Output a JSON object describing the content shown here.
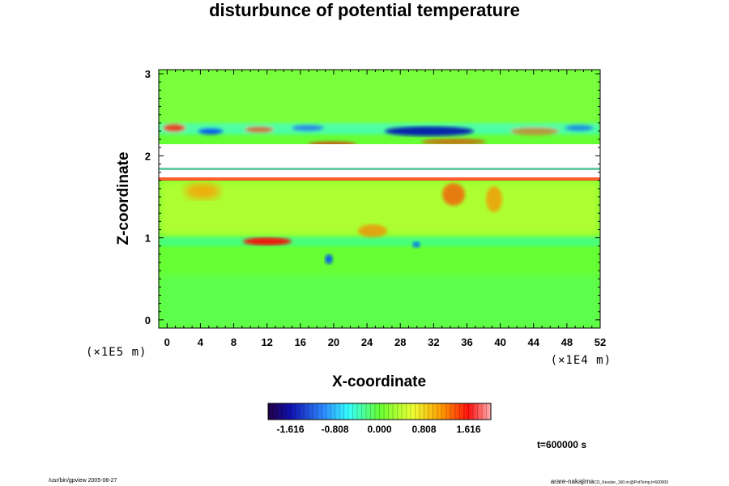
{
  "chart_data": {
    "type": "heatmap",
    "title": "disturbunce of potential temperature",
    "xlabel": "X-coordinate",
    "ylabel": "Z-coordinate",
    "x_unit": "(×1E4 m)",
    "y_unit": "(×1E5 m)",
    "x_ticks": [
      "0",
      "4",
      "8",
      "12",
      "16",
      "20",
      "24",
      "28",
      "32",
      "36",
      "40",
      "44",
      "48",
      "52"
    ],
    "y_ticks": [
      "0",
      "1",
      "2",
      "3"
    ],
    "xlim": [
      -1,
      52
    ],
    "ylim": [
      -0.1,
      3.05
    ],
    "colorbar": {
      "ticks": [
        "-1.616",
        "-0.808",
        "0.000",
        "0.808",
        "1.616"
      ],
      "range": [
        -2.02,
        2.02
      ]
    },
    "background_value": 0.45,
    "features": [
      {
        "kind": "band",
        "z_from": 1.68,
        "z_to": 2.22,
        "value": "undefined"
      },
      {
        "kind": "band",
        "z_from": 0.88,
        "z_to": 1.7,
        "value": 0.6
      },
      {
        "kind": "band",
        "z_from": -0.1,
        "z_to": 0.4,
        "value": 0.2
      },
      {
        "kind": "band",
        "z_from": 2.22,
        "z_to": 2.4,
        "value": "oscillating"
      },
      {
        "kind": "blob",
        "x": 11,
        "z": 0.98,
        "value": 1.9
      },
      {
        "kind": "blob",
        "x": 30,
        "z": 2.3,
        "value": -1.7
      },
      {
        "kind": "blob",
        "x": 19.5,
        "z": 0.7,
        "value": -1.2
      },
      {
        "kind": "blob",
        "x": 34,
        "z": 1.6,
        "value": 1.7
      }
    ],
    "grid": false
  },
  "time_label": "t=600000 s",
  "footer": {
    "left": "/usr/bin/gpview 2005-08-27",
    "right_name": "arare-nakajima",
    "right_file": "CO_Kessler_160.nc@PotTemp,t=600000"
  },
  "colors": {
    "positive_extreme": "#ff0000",
    "negative_extreme": "#0000cc",
    "zero": "#66ff33"
  }
}
